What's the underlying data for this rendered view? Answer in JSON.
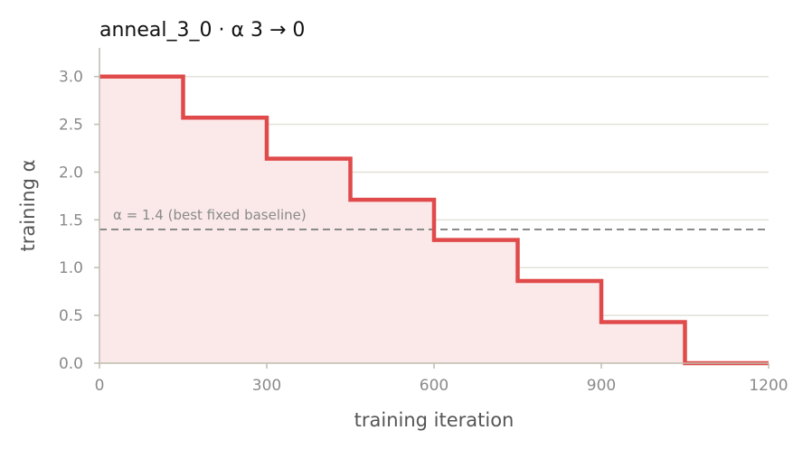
{
  "chart_data": {
    "type": "line",
    "title": "anneal_3_0   ·   α 3 → 0",
    "xlabel": "training iteration",
    "ylabel": "training α",
    "xlim": [
      0,
      1200
    ],
    "ylim": [
      0,
      3.3
    ],
    "x_ticks": [
      0,
      300,
      600,
      900,
      1200
    ],
    "x_tick_labels": [
      "0",
      "300",
      "600",
      "900",
      "1200"
    ],
    "y_ticks": [
      0.0,
      0.5,
      1.0,
      1.5,
      2.0,
      2.5,
      3.0
    ],
    "y_tick_labels": [
      "0.0",
      "0.5",
      "1.0",
      "1.5",
      "2.0",
      "2.5",
      "3.0"
    ],
    "grid": "horizontal",
    "step_series": {
      "step": "post",
      "fill_below": true,
      "points": [
        {
          "x": 0,
          "y": 3.0
        },
        {
          "x": 150,
          "y": 2.57
        },
        {
          "x": 300,
          "y": 2.14
        },
        {
          "x": 450,
          "y": 1.71
        },
        {
          "x": 600,
          "y": 1.29
        },
        {
          "x": 750,
          "y": 0.86
        },
        {
          "x": 900,
          "y": 0.43
        },
        {
          "x": 1050,
          "y": 0.0
        },
        {
          "x": 1200,
          "y": 0.0
        }
      ]
    },
    "reference_line": {
      "y": 1.4,
      "label": "α = 1.4 (best fixed baseline)",
      "style": "dashed"
    },
    "colors": {
      "series": "#e04a4a",
      "fill": "#fbe9e9",
      "reference": "#8a8a8a",
      "grid": "#e2e0d8",
      "axis": "#c0bcb0"
    }
  }
}
